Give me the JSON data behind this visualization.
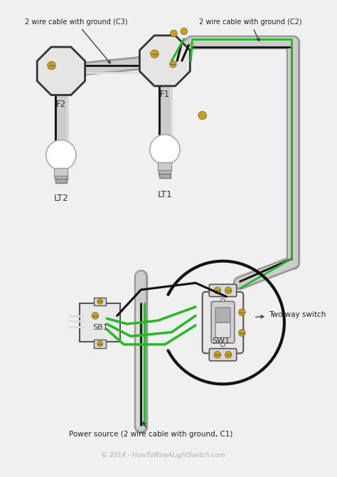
{
  "bg": "#f0f0f0",
  "wire_black": "#111111",
  "wire_green": "#22bb22",
  "wire_white": "#dddddd",
  "conduit_outer": "#999999",
  "conduit_inner": "#cccccc",
  "gold": "#c8a020",
  "box_face": "#e0e0e0",
  "box_edge": "#555555",
  "label_C3": "2 wire cable with ground (C3)",
  "label_C2": "2 wire cable with ground (C2)",
  "label_C1": "Power source (2 wire cable with ground, C1)",
  "label_F1": "F1",
  "label_F2": "F2",
  "label_LT1": "LT1",
  "label_LT2": "LT2",
  "label_SB1": "SB1",
  "label_SW1": "SW1",
  "label_two_way": "Two way switch",
  "label_copyright": "© 2014 - HowToWireALightSwitch.com",
  "conduit_lw_out": 14,
  "conduit_lw_in": 10
}
